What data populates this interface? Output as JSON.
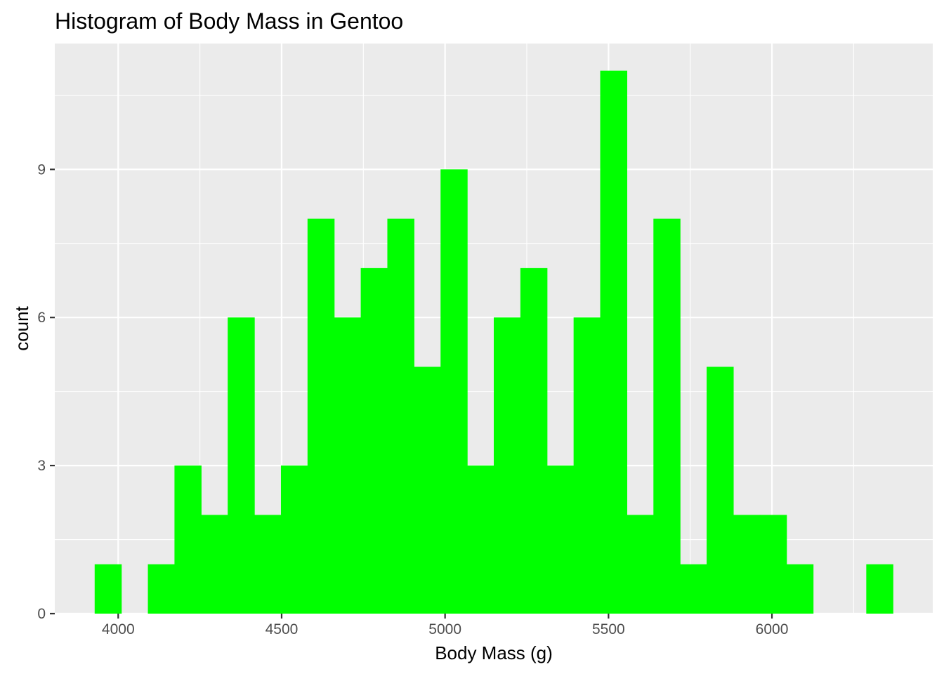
{
  "chart_data": {
    "type": "bar",
    "subtype": "histogram",
    "title": "Histogram of Body Mass in Gentoo",
    "xlabel": "Body Mass (g)",
    "ylabel": "count",
    "bar_color": "#00ff00",
    "panel_color": "#ebebeb",
    "grid_color": "#ffffff",
    "bin_width": 81.4,
    "bins": [
      {
        "x_start": 3928,
        "x_end": 4009.4,
        "count": 1
      },
      {
        "x_start": 4009.4,
        "x_end": 4090.8,
        "count": 0
      },
      {
        "x_start": 4090.8,
        "x_end": 4172.2,
        "count": 1
      },
      {
        "x_start": 4172.2,
        "x_end": 4253.6,
        "count": 3
      },
      {
        "x_start": 4253.6,
        "x_end": 4335.0,
        "count": 2
      },
      {
        "x_start": 4335.0,
        "x_end": 4416.4,
        "count": 6
      },
      {
        "x_start": 4416.4,
        "x_end": 4497.8,
        "count": 2
      },
      {
        "x_start": 4497.8,
        "x_end": 4579.2,
        "count": 3
      },
      {
        "x_start": 4579.2,
        "x_end": 4660.6,
        "count": 8
      },
      {
        "x_start": 4660.6,
        "x_end": 4742.0,
        "count": 6
      },
      {
        "x_start": 4742.0,
        "x_end": 4823.4,
        "count": 7
      },
      {
        "x_start": 4823.4,
        "x_end": 4904.8,
        "count": 8
      },
      {
        "x_start": 4904.8,
        "x_end": 4986.2,
        "count": 5
      },
      {
        "x_start": 4986.2,
        "x_end": 5067.6,
        "count": 9
      },
      {
        "x_start": 5067.6,
        "x_end": 5149.0,
        "count": 3
      },
      {
        "x_start": 5149.0,
        "x_end": 5230.4,
        "count": 6
      },
      {
        "x_start": 5230.4,
        "x_end": 5311.8,
        "count": 7
      },
      {
        "x_start": 5311.8,
        "x_end": 5393.2,
        "count": 3
      },
      {
        "x_start": 5393.2,
        "x_end": 5474.6,
        "count": 6
      },
      {
        "x_start": 5474.6,
        "x_end": 5556.0,
        "count": 11
      },
      {
        "x_start": 5556.0,
        "x_end": 5637.4,
        "count": 2
      },
      {
        "x_start": 5637.4,
        "x_end": 5718.8,
        "count": 8
      },
      {
        "x_start": 5718.8,
        "x_end": 5800.2,
        "count": 1
      },
      {
        "x_start": 5800.2,
        "x_end": 5881.6,
        "count": 5
      },
      {
        "x_start": 5881.6,
        "x_end": 5963.0,
        "count": 2
      },
      {
        "x_start": 5963.0,
        "x_end": 6044.4,
        "count": 2
      },
      {
        "x_start": 6044.4,
        "x_end": 6125.8,
        "count": 1
      },
      {
        "x_start": 6125.8,
        "x_end": 6207.2,
        "count": 0
      },
      {
        "x_start": 6207.2,
        "x_end": 6288.6,
        "count": 0
      },
      {
        "x_start": 6288.6,
        "x_end": 6370.0,
        "count": 1
      }
    ],
    "xlim": [
      3806,
      6492
    ],
    "ylim": [
      0,
      11.55
    ],
    "x_ticks": [
      4000,
      4500,
      5000,
      5500,
      6000
    ],
    "x_tick_labels": [
      "4000",
      "4500",
      "5000",
      "5500",
      "6000"
    ],
    "x_minor_ticks": [
      4250,
      4750,
      5250,
      5750,
      6250
    ],
    "y_ticks": [
      0,
      3,
      6,
      9
    ],
    "y_tick_labels": [
      "0",
      "3",
      "6",
      "9"
    ],
    "y_minor_ticks": [
      1.5,
      4.5,
      7.5,
      10.5
    ],
    "grid": true,
    "legend": "none"
  }
}
